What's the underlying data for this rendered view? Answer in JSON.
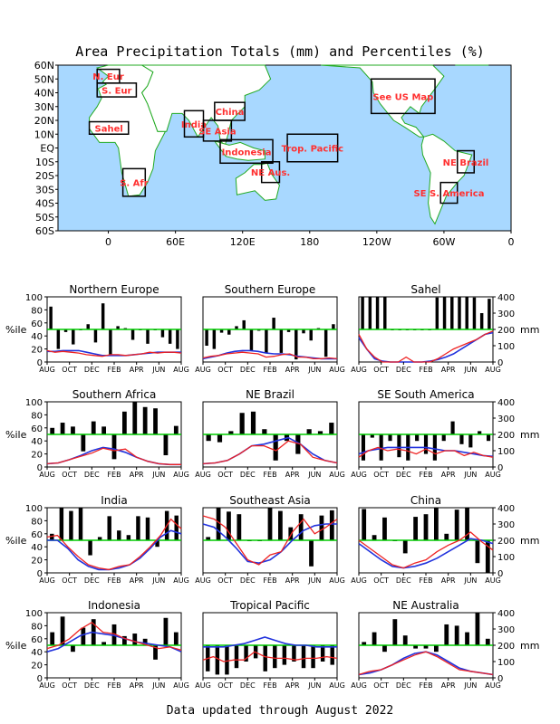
{
  "title": "Area Precipitation Totals (mm) and Percentiles (%)",
  "footer": "Data updated through August 2022",
  "map": {
    "lat_labels": [
      "60N",
      "50N",
      "40N",
      "30N",
      "20N",
      "10N",
      "EQ",
      "10S",
      "20S",
      "30S",
      "40S",
      "50S",
      "60S"
    ],
    "lon_labels": [
      "0",
      "60E",
      "120E",
      "180",
      "120W",
      "60W",
      "0"
    ],
    "region_labels": [
      {
        "text": "N. Eur",
        "lon": [
          -10,
          10
        ],
        "lat": [
          57,
          47
        ]
      },
      {
        "text": "S. Eur",
        "lon": [
          -10,
          25
        ],
        "lat": [
          47,
          37
        ]
      },
      {
        "text": "Sahel",
        "lon": [
          -17,
          18
        ],
        "lat": [
          19,
          10
        ]
      },
      {
        "text": "India",
        "lon": [
          68,
          85
        ],
        "lat": [
          27,
          8
        ]
      },
      {
        "text": "China",
        "lon": [
          95,
          122
        ],
        "lat": [
          33,
          20
        ]
      },
      {
        "text": "SE Asia",
        "lon": [
          85,
          110
        ],
        "lat": [
          20,
          5
        ]
      },
      {
        "text": "Indonesia",
        "lon": [
          100,
          147
        ],
        "lat": [
          6,
          -11
        ]
      },
      {
        "text": "Trop. Pacific",
        "lon": [
          160,
          205
        ],
        "lat": [
          10,
          -10
        ]
      },
      {
        "text": "NE Aus.",
        "lon": [
          137,
          153
        ],
        "lat": [
          -10,
          -25
        ]
      },
      {
        "text": "S. Afr",
        "lon": [
          13,
          33
        ],
        "lat": [
          -15,
          -35
        ]
      },
      {
        "text": "See US Map",
        "lon": [
          -125,
          -68
        ],
        "lat": [
          50,
          25
        ]
      },
      {
        "text": "NE Brazil",
        "lon": [
          -48,
          -33
        ],
        "lat": [
          -2,
          -18
        ]
      },
      {
        "text": "SE S. America",
        "lon": [
          -63,
          -48
        ],
        "lat": [
          -25,
          -40
        ]
      }
    ]
  },
  "axis_labels": {
    "left": "%ile",
    "right": "mm"
  },
  "chart_data": [
    {
      "type": "bar",
      "title": "Northern Europe",
      "x_ticks": [
        "AUG",
        "OCT",
        "DEC",
        "FEB",
        "APR",
        "JUN",
        "AUG"
      ],
      "ylim_left": [
        0,
        100
      ],
      "ylim_right": [
        0,
        400
      ],
      "percentiles": [
        85,
        20,
        46,
        27,
        50,
        58,
        30,
        90,
        10,
        55,
        52,
        34,
        50,
        28,
        50,
        38,
        28,
        20
      ],
      "totals_red": [
        70,
        60,
        65,
        60,
        55,
        45,
        40,
        35,
        45,
        45,
        40,
        45,
        50,
        60,
        55,
        60,
        60,
        55
      ],
      "totals_blue": [
        65,
        65,
        70,
        70,
        70,
        60,
        50,
        40,
        40,
        40,
        40,
        45,
        50,
        55,
        60,
        60,
        60,
        60
      ]
    },
    {
      "type": "bar",
      "title": "Southern Europe",
      "x_ticks": [
        "AUG",
        "OCT",
        "DEC",
        "FEB",
        "APR",
        "JUN",
        "AUG"
      ],
      "ylim_left": [
        0,
        100
      ],
      "ylim_right": [
        0,
        400
      ],
      "percentiles": [
        25,
        20,
        45,
        42,
        55,
        64,
        18,
        48,
        14,
        68,
        14,
        46,
        4,
        44,
        33,
        52,
        8,
        58
      ],
      "totals_red": [
        25,
        35,
        40,
        50,
        55,
        60,
        55,
        50,
        30,
        35,
        45,
        50,
        30,
        30,
        20,
        20,
        25,
        20
      ],
      "totals_blue": [
        20,
        30,
        40,
        55,
        65,
        70,
        70,
        65,
        55,
        50,
        50,
        45,
        35,
        30,
        25,
        20,
        20,
        20
      ]
    },
    {
      "type": "bar",
      "title": "Sahel",
      "x_ticks": [
        "AUG",
        "OCT",
        "DEC",
        "FEB",
        "APR",
        "JUN",
        "AUG"
      ],
      "ylim_left": [
        0,
        100
      ],
      "ylim_right": [
        0,
        400
      ],
      "percentiles": [
        100,
        100,
        100,
        100,
        50,
        50,
        50,
        50,
        50,
        50,
        99,
        100,
        100,
        100,
        100,
        99,
        75,
        97
      ],
      "totals_red": [
        170,
        80,
        30,
        0,
        0,
        0,
        30,
        0,
        0,
        0,
        20,
        50,
        80,
        100,
        120,
        140,
        170,
        190
      ],
      "totals_blue": [
        150,
        80,
        20,
        5,
        0,
        0,
        0,
        0,
        0,
        5,
        15,
        30,
        50,
        80,
        110,
        140,
        170,
        180
      ]
    },
    {
      "type": "bar",
      "title": "Southern Africa",
      "x_ticks": [
        "AUG",
        "OCT",
        "DEC",
        "FEB",
        "APR",
        "JUN",
        "AUG"
      ],
      "ylim_left": [
        0,
        100
      ],
      "ylim_right": [
        0,
        400
      ],
      "percentiles": [
        60,
        68,
        62,
        24,
        70,
        62,
        12,
        85,
        100,
        92,
        90,
        18,
        63
      ],
      "totals_red": [
        20,
        25,
        45,
        65,
        85,
        115,
        100,
        110,
        60,
        35,
        20,
        15,
        15
      ],
      "totals_blue": [
        20,
        25,
        45,
        70,
        100,
        120,
        110,
        90,
        60,
        35,
        20,
        15,
        15
      ]
    },
    {
      "type": "bar",
      "title": "NE Brazil",
      "x_ticks": [
        "AUG",
        "OCT",
        "DEC",
        "FEB",
        "APR",
        "JUN",
        "AUG"
      ],
      "ylim_left": [
        0,
        100
      ],
      "ylim_right": [
        0,
        400
      ],
      "percentiles": [
        40,
        38,
        55,
        83,
        85,
        58,
        10,
        40,
        20,
        58,
        55,
        68
      ],
      "totals_red": [
        20,
        25,
        40,
        80,
        130,
        130,
        100,
        160,
        140,
        60,
        40,
        25
      ],
      "totals_blue": [
        20,
        25,
        40,
        80,
        130,
        140,
        160,
        180,
        140,
        80,
        40,
        25
      ]
    },
    {
      "type": "bar",
      "title": "SE South America",
      "x_ticks": [
        "AUG",
        "OCT",
        "DEC",
        "FEB",
        "APR",
        "JUN",
        "AUG"
      ],
      "ylim_left": [
        0,
        100
      ],
      "ylim_right": [
        0,
        400
      ],
      "percentiles": [
        10,
        45,
        10,
        40,
        15,
        10,
        40,
        20,
        10,
        40,
        70,
        35,
        30,
        55,
        40
      ],
      "totals_red": [
        60,
        100,
        120,
        100,
        110,
        100,
        80,
        110,
        80,
        100,
        100,
        70,
        90,
        70,
        60
      ],
      "totals_blue": [
        80,
        100,
        110,
        120,
        120,
        120,
        120,
        120,
        110,
        100,
        100,
        90,
        80,
        70,
        65
      ]
    },
    {
      "type": "bar",
      "title": "India",
      "x_ticks": [
        "AUG",
        "OCT",
        "DEC",
        "FEB",
        "APR",
        "JUN",
        "AUG"
      ],
      "ylim_left": [
        0,
        100
      ],
      "ylim_right": [
        0,
        400
      ],
      "percentiles": [
        60,
        100,
        95,
        100,
        27,
        55,
        87,
        65,
        58,
        87,
        85,
        40,
        95,
        88
      ],
      "totals_red": [
        220,
        230,
        160,
        100,
        50,
        30,
        20,
        40,
        50,
        100,
        160,
        230,
        330,
        270
      ],
      "totals_blue": [
        200,
        200,
        150,
        80,
        40,
        20,
        20,
        30,
        50,
        90,
        150,
        220,
        260,
        240
      ]
    },
    {
      "type": "bar",
      "title": "Southeast Asia",
      "x_ticks": [
        "AUG",
        "OCT",
        "DEC",
        "FEB",
        "APR",
        "JUN",
        "AUG"
      ],
      "ylim_left": [
        0,
        100
      ],
      "ylim_right": [
        0,
        400
      ],
      "percentiles": [
        55,
        100,
        94,
        90,
        50,
        50,
        100,
        95,
        70,
        90,
        10,
        88,
        96
      ],
      "totals_red": [
        350,
        330,
        280,
        180,
        80,
        50,
        110,
        130,
        250,
        330,
        240,
        280,
        330
      ],
      "totals_blue": [
        300,
        280,
        220,
        150,
        70,
        60,
        80,
        130,
        200,
        260,
        290,
        300,
        300
      ]
    },
    {
      "type": "bar",
      "title": "China",
      "x_ticks": [
        "AUG",
        "OCT",
        "DEC",
        "FEB",
        "APR",
        "JUN",
        "AUG"
      ],
      "ylim_left": [
        0,
        100
      ],
      "ylim_right": [
        0,
        400
      ],
      "percentiles": [
        98,
        58,
        85,
        50,
        30,
        86,
        90,
        100,
        60,
        97,
        100,
        15,
        0
      ],
      "totals_red": [
        200,
        150,
        100,
        50,
        30,
        60,
        80,
        130,
        170,
        200,
        250,
        190,
        140
      ],
      "totals_blue": [
        180,
        130,
        80,
        40,
        30,
        40,
        60,
        90,
        130,
        170,
        210,
        200,
        180
      ]
    },
    {
      "type": "bar",
      "title": "Indonesia",
      "x_ticks": [
        "AUG",
        "OCT",
        "DEC",
        "FEB",
        "APR",
        "JUN",
        "AUG"
      ],
      "ylim_left": [
        0,
        100
      ],
      "ylim_right": [
        0,
        400
      ],
      "percentiles": [
        70,
        94,
        40,
        77,
        90,
        55,
        82,
        64,
        68,
        60,
        28,
        92,
        70
      ],
      "totals_red": [
        180,
        200,
        240,
        300,
        340,
        280,
        270,
        240,
        220,
        200,
        180,
        190,
        170
      ],
      "totals_blue": [
        160,
        180,
        220,
        260,
        280,
        270,
        260,
        240,
        220,
        210,
        200,
        190,
        160
      ]
    },
    {
      "type": "bar",
      "title": "Tropical Pacific",
      "x_ticks": [
        "AUG",
        "OCT",
        "DEC",
        "FEB",
        "APR",
        "JUN",
        "AUG"
      ],
      "ylim_left": [
        0,
        100
      ],
      "ylim_right": [
        0,
        400
      ],
      "percentiles": [
        10,
        5,
        5,
        15,
        25,
        30,
        10,
        15,
        20,
        25,
        15,
        15,
        25,
        20
      ],
      "totals_red": [
        110,
        130,
        100,
        110,
        110,
        160,
        130,
        120,
        120,
        110,
        120,
        120,
        130,
        120
      ],
      "totals_blue": [
        190,
        190,
        190,
        200,
        210,
        230,
        250,
        230,
        210,
        200,
        200,
        190,
        190,
        190
      ]
    },
    {
      "type": "bar",
      "title": "NE Australia",
      "x_ticks": [
        "AUG",
        "OCT",
        "DEC",
        "FEB",
        "APR",
        "JUN",
        "AUG"
      ],
      "ylim_left": [
        0,
        100
      ],
      "ylim_right": [
        0,
        400
      ],
      "percentiles": [
        55,
        70,
        40,
        90,
        65,
        45,
        45,
        40,
        82,
        80,
        70,
        100,
        60
      ],
      "totals_red": [
        20,
        40,
        50,
        80,
        110,
        140,
        160,
        130,
        90,
        50,
        40,
        30,
        20
      ],
      "totals_blue": [
        20,
        30,
        50,
        80,
        120,
        150,
        160,
        140,
        100,
        60,
        40,
        30,
        20
      ]
    }
  ]
}
